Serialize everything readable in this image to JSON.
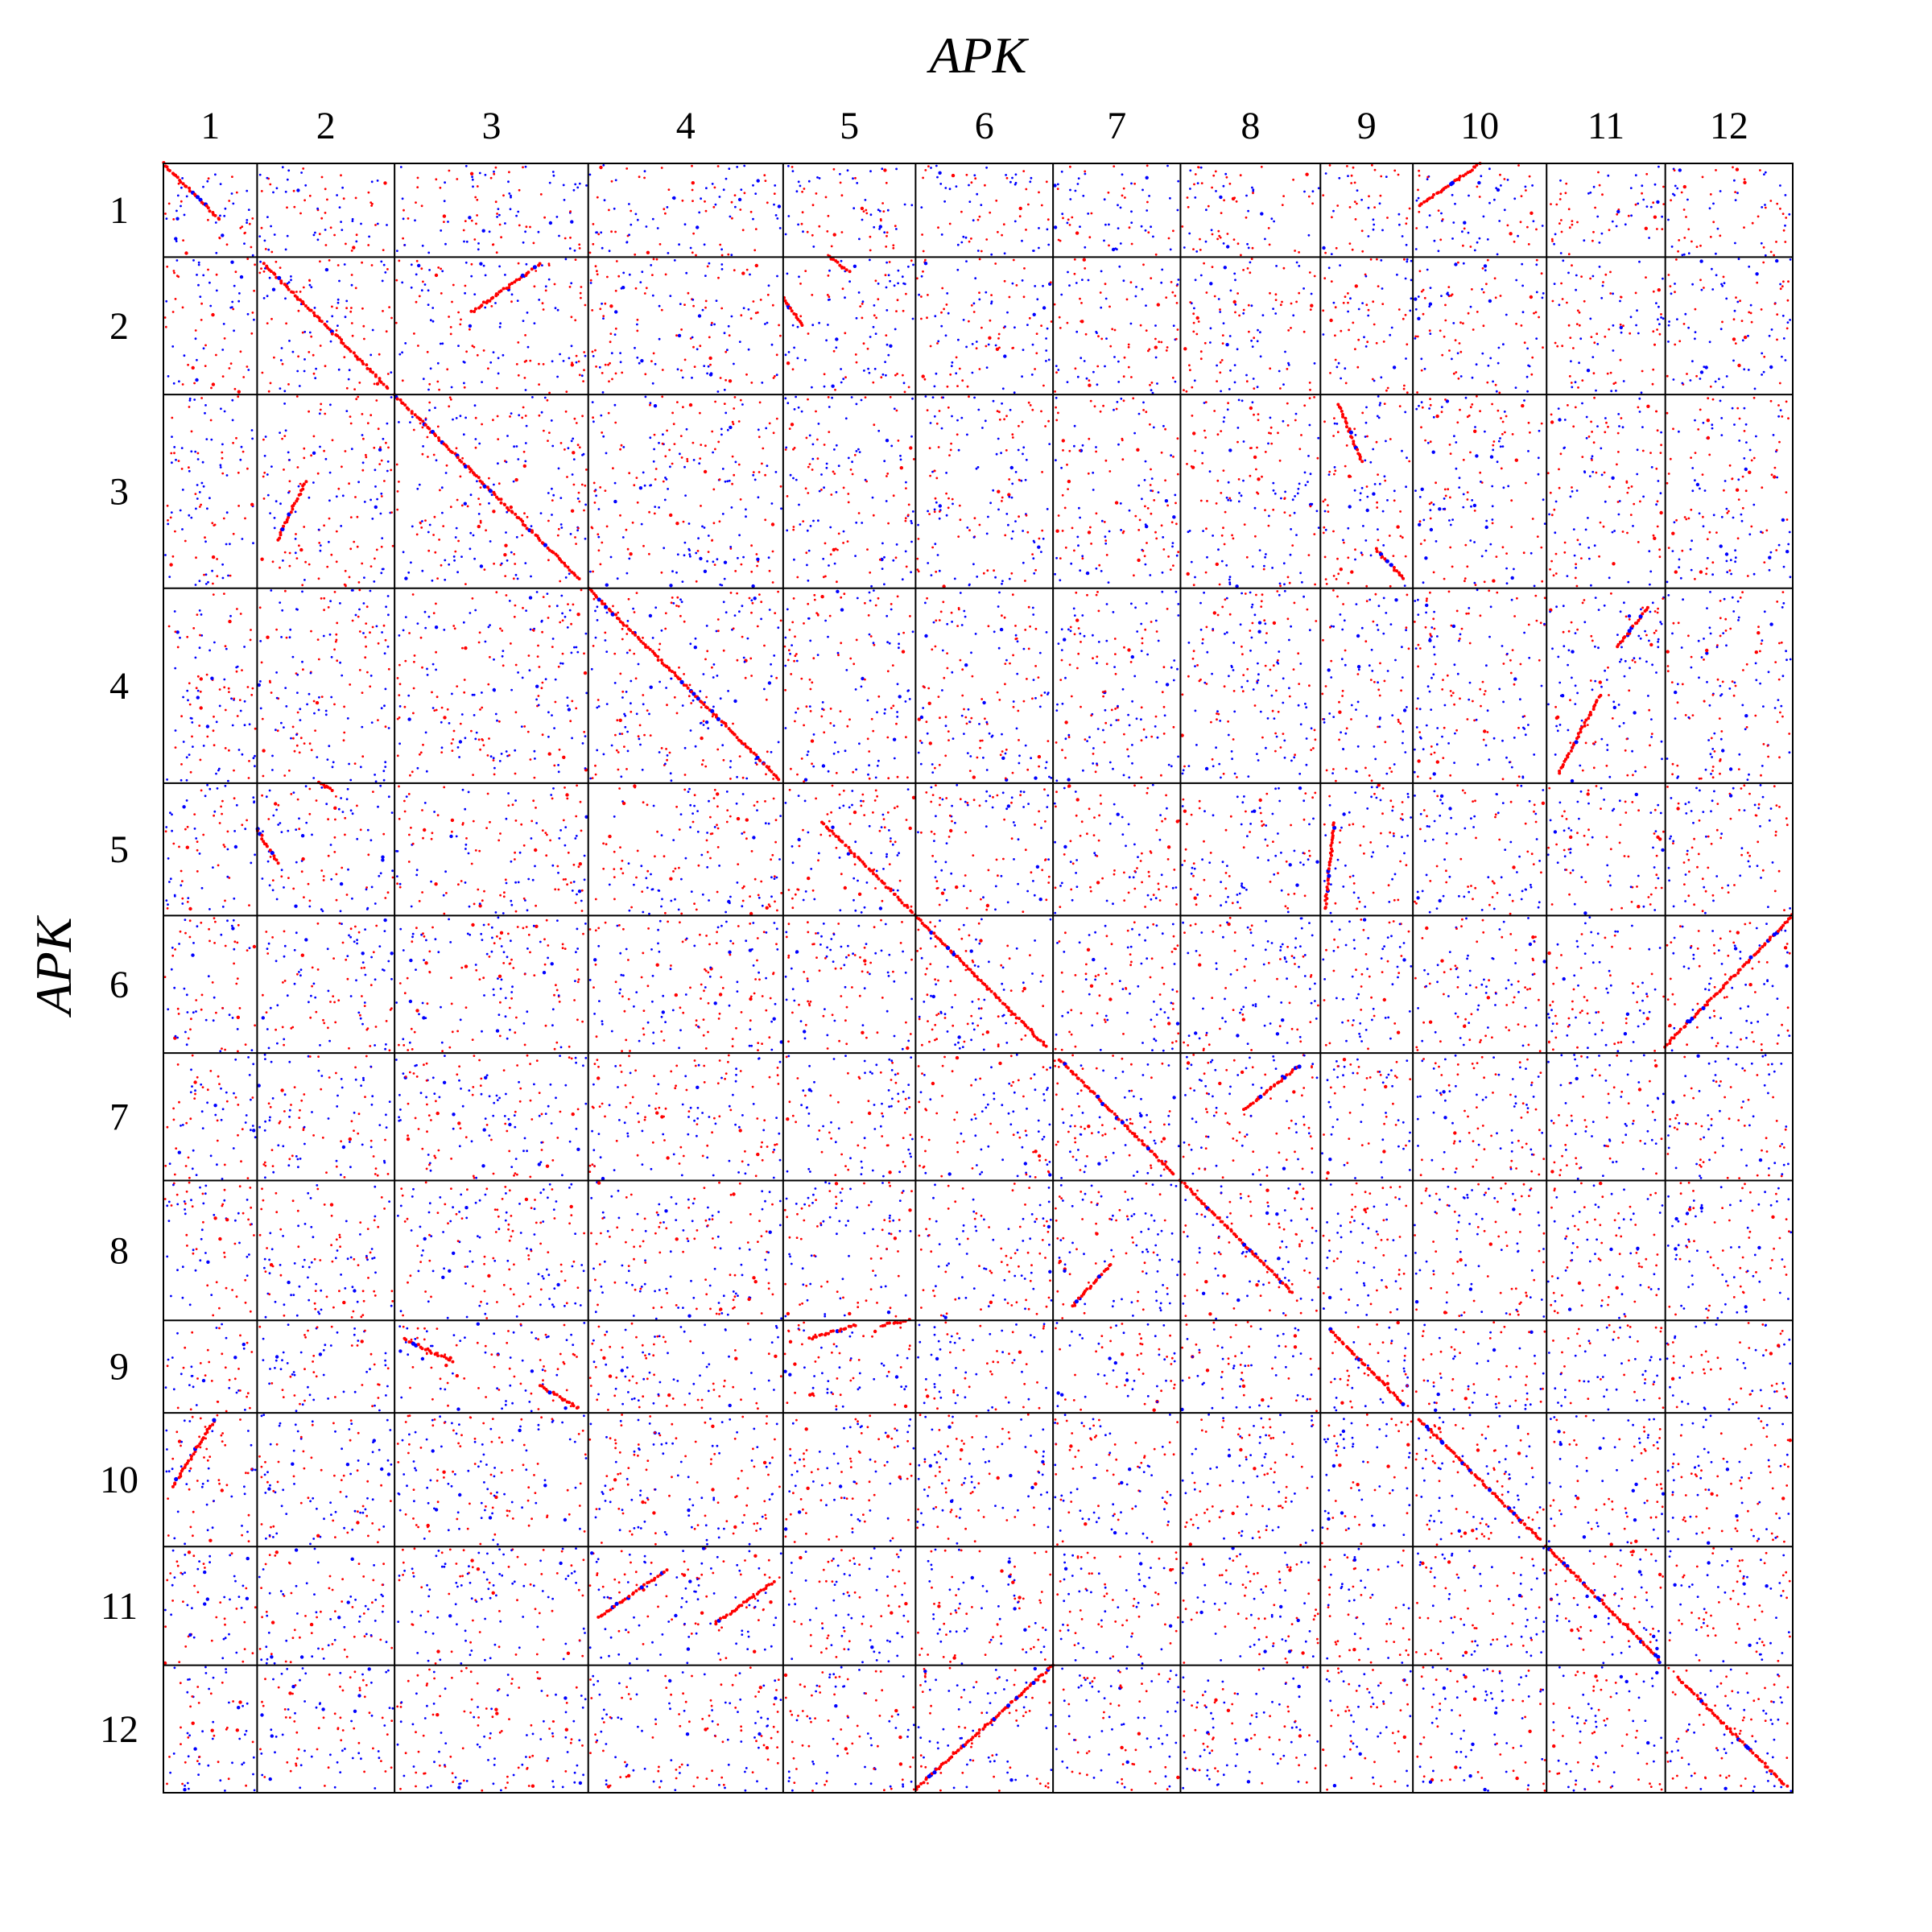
{
  "chart_data": {
    "type": "scatter",
    "subtype": "genome-dotplot",
    "title": "",
    "xlabel": "APK",
    "ylabel": "APK",
    "x_chromosomes": [
      "1",
      "2",
      "3",
      "4",
      "5",
      "6",
      "7",
      "8",
      "9",
      "10",
      "11",
      "12"
    ],
    "y_chromosomes": [
      "1",
      "2",
      "3",
      "4",
      "5",
      "6",
      "7",
      "8",
      "9",
      "10",
      "11",
      "12"
    ],
    "x_relative_sizes": [
      0.75,
      1.1,
      1.55,
      1.56,
      1.06,
      1.1,
      1.02,
      1.12,
      0.74,
      1.07,
      0.95,
      1.02
    ],
    "y_relative_sizes": [
      0.75,
      1.1,
      1.55,
      1.56,
      1.06,
      1.1,
      1.02,
      1.12,
      0.74,
      1.07,
      0.95,
      1.02
    ],
    "legend": "none",
    "grid": true,
    "colors": {
      "best_hit": "#ff0000",
      "other_hit": "#0000ff",
      "border": "#000000",
      "background": "#ffffff"
    },
    "syntenic_blocks": [
      {
        "x_chr": "1",
        "y_chr": "1",
        "from": [
          0.0,
          0.0
        ],
        "to": [
          0.6,
          0.6
        ]
      },
      {
        "x_chr": "2",
        "y_chr": "2",
        "from": [
          0.05,
          0.05
        ],
        "to": [
          0.95,
          0.95
        ]
      },
      {
        "x_chr": "3",
        "y_chr": "3",
        "from": [
          0.0,
          0.0
        ],
        "to": [
          0.95,
          0.95
        ]
      },
      {
        "x_chr": "4",
        "y_chr": "4",
        "from": [
          0.0,
          0.0
        ],
        "to": [
          0.98,
          0.98
        ]
      },
      {
        "x_chr": "5",
        "y_chr": "5",
        "from": [
          0.3,
          0.3
        ],
        "to": [
          0.97,
          0.97
        ]
      },
      {
        "x_chr": "6",
        "y_chr": "6",
        "from": [
          0.0,
          0.0
        ],
        "to": [
          0.95,
          0.95
        ]
      },
      {
        "x_chr": "7",
        "y_chr": "7",
        "from": [
          0.05,
          0.05
        ],
        "to": [
          0.95,
          0.95
        ]
      },
      {
        "x_chr": "8",
        "y_chr": "8",
        "from": [
          0.0,
          0.0
        ],
        "to": [
          0.8,
          0.8
        ]
      },
      {
        "x_chr": "9",
        "y_chr": "9",
        "from": [
          0.1,
          0.1
        ],
        "to": [
          0.9,
          0.9
        ]
      },
      {
        "x_chr": "10",
        "y_chr": "10",
        "from": [
          0.05,
          0.05
        ],
        "to": [
          0.95,
          0.95
        ]
      },
      {
        "x_chr": "11",
        "y_chr": "11",
        "from": [
          0.0,
          0.0
        ],
        "to": [
          0.95,
          0.95
        ]
      },
      {
        "x_chr": "12",
        "y_chr": "12",
        "from": [
          0.1,
          0.1
        ],
        "to": [
          0.95,
          0.95
        ]
      },
      {
        "x_chr": "12",
        "y_chr": "6",
        "from": [
          0.0,
          0.95
        ],
        "to": [
          1.0,
          0.0
        ]
      },
      {
        "x_chr": "6",
        "y_chr": "12",
        "from": [
          0.0,
          0.97
        ],
        "to": [
          1.0,
          0.0
        ]
      },
      {
        "x_chr": "10",
        "y_chr": "1",
        "from": [
          0.05,
          0.45
        ],
        "to": [
          0.5,
          0.0
        ]
      },
      {
        "x_chr": "1",
        "y_chr": "10",
        "from": [
          0.1,
          0.55
        ],
        "to": [
          0.55,
          0.05
        ]
      },
      {
        "x_chr": "3",
        "y_chr": "2",
        "from": [
          0.4,
          0.4
        ],
        "to": [
          0.75,
          0.05
        ]
      },
      {
        "x_chr": "2",
        "y_chr": "3",
        "from": [
          0.15,
          0.75
        ],
        "to": [
          0.35,
          0.45
        ]
      },
      {
        "x_chr": "9",
        "y_chr": "3",
        "from": [
          0.2,
          0.05
        ],
        "to": [
          0.45,
          0.35
        ]
      },
      {
        "x_chr": "9",
        "y_chr": "3",
        "from": [
          0.6,
          0.8
        ],
        "to": [
          0.9,
          0.95
        ]
      },
      {
        "x_chr": "3",
        "y_chr": "9",
        "from": [
          0.05,
          0.2
        ],
        "to": [
          0.3,
          0.45
        ]
      },
      {
        "x_chr": "3",
        "y_chr": "9",
        "from": [
          0.75,
          0.7
        ],
        "to": [
          0.95,
          0.95
        ]
      },
      {
        "x_chr": "5",
        "y_chr": "2",
        "from": [
          0.35,
          0.0
        ],
        "to": [
          0.5,
          0.1
        ]
      },
      {
        "x_chr": "5",
        "y_chr": "2",
        "from": [
          0.0,
          0.3
        ],
        "to": [
          0.15,
          0.5
        ]
      },
      {
        "x_chr": "2",
        "y_chr": "5",
        "from": [
          0.0,
          0.35
        ],
        "to": [
          0.15,
          0.6
        ]
      },
      {
        "x_chr": "2",
        "y_chr": "5",
        "from": [
          0.45,
          0.0
        ],
        "to": [
          0.55,
          0.05
        ]
      },
      {
        "x_chr": "8",
        "y_chr": "7",
        "from": [
          0.45,
          0.45
        ],
        "to": [
          0.85,
          0.1
        ]
      },
      {
        "x_chr": "7",
        "y_chr": "8",
        "from": [
          0.15,
          0.9
        ],
        "to": [
          0.45,
          0.6
        ]
      },
      {
        "x_chr": "11",
        "y_chr": "4",
        "from": [
          0.1,
          0.95
        ],
        "to": [
          0.45,
          0.55
        ]
      },
      {
        "x_chr": "11",
        "y_chr": "4",
        "from": [
          0.6,
          0.3
        ],
        "to": [
          0.85,
          0.1
        ]
      },
      {
        "x_chr": "4",
        "y_chr": "11",
        "from": [
          0.05,
          0.6
        ],
        "to": [
          0.4,
          0.2
        ]
      },
      {
        "x_chr": "4",
        "y_chr": "11",
        "from": [
          0.65,
          0.65
        ],
        "to": [
          0.95,
          0.3
        ]
      },
      {
        "x_chr": "9",
        "y_chr": "5",
        "from": [
          0.05,
          0.95
        ],
        "to": [
          0.15,
          0.3
        ]
      },
      {
        "x_chr": "5",
        "y_chr": "9",
        "from": [
          0.2,
          0.2
        ],
        "to": [
          0.55,
          0.05
        ]
      },
      {
        "x_chr": "5",
        "y_chr": "9",
        "from": [
          0.75,
          0.05
        ],
        "to": [
          0.95,
          0.0
        ]
      }
    ],
    "background_hits": "sparse scattered red and blue points across all chromosome pairs"
  }
}
